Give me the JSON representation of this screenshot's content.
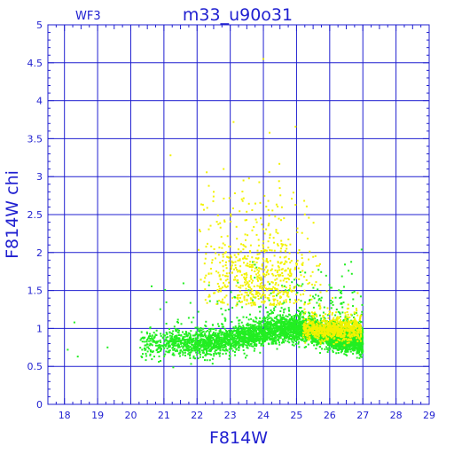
{
  "chart_data": {
    "type": "scatter",
    "title": "m33_u90o31",
    "subtitle": "WF3",
    "xlabel": "F814W",
    "ylabel": "F814W  chi",
    "xlim": [
      17.5,
      29
    ],
    "ylim": [
      0,
      5
    ],
    "x_ticks": [
      "18",
      "19",
      "20",
      "21",
      "22",
      "23",
      "24",
      "25",
      "26",
      "27",
      "28",
      "29"
    ],
    "y_ticks": [
      "0",
      "0.5",
      "1",
      "1.5",
      "2",
      "2.5",
      "3",
      "3.5",
      "4",
      "4.5",
      "5"
    ],
    "grid": true,
    "colors": {
      "axis": "#1f1fd0",
      "grid": "#1f1fd0",
      "green_points": "#22ee22",
      "yellow_points": "#f2f200"
    },
    "series": [
      {
        "color": "green",
        "description_points": [
          [
            18.1,
            0.72
          ],
          [
            18.3,
            1.08
          ],
          [
            18.4,
            0.63
          ],
          [
            19.3,
            0.75
          ],
          [
            19.4,
            0.92
          ],
          [
            19.7,
            0.85
          ],
          [
            20.0,
            0.95
          ],
          [
            20.3,
            0.82
          ],
          [
            20.6,
            0.78
          ],
          [
            20.9,
            0.8
          ],
          [
            21.2,
            0.86
          ],
          [
            21.5,
            0.88
          ],
          [
            21.8,
            0.83
          ],
          [
            22.1,
            0.87
          ],
          [
            22.4,
            0.85
          ],
          [
            22.7,
            0.88
          ],
          [
            23.0,
            0.9
          ],
          [
            23.3,
            0.92
          ],
          [
            23.6,
            0.95
          ],
          [
            23.9,
            0.96
          ],
          [
            24.2,
            0.99
          ],
          [
            24.5,
            1.0
          ],
          [
            24.8,
            1.0
          ],
          [
            25.1,
            0.98
          ],
          [
            25.4,
            0.96
          ],
          [
            25.7,
            0.93
          ],
          [
            26.0,
            0.92
          ],
          [
            26.3,
            0.9
          ],
          [
            26.6,
            0.88
          ],
          [
            26.9,
            0.86
          ]
        ]
      },
      {
        "color": "yellow",
        "description_points": [
          [
            21.2,
            3.28
          ],
          [
            22.5,
            2.8
          ],
          [
            22.8,
            3.1
          ],
          [
            23.1,
            3.72
          ],
          [
            23.4,
            2.95
          ],
          [
            24.0,
            4.55
          ],
          [
            23.8,
            2.4
          ],
          [
            24.1,
            1.9
          ],
          [
            24.3,
            1.7
          ],
          [
            24.6,
            1.45
          ],
          [
            25.0,
            1.35
          ],
          [
            25.5,
            1.2
          ],
          [
            26.0,
            1.05
          ],
          [
            26.3,
            0.98
          ],
          [
            26.6,
            0.95
          ]
        ]
      }
    ]
  }
}
